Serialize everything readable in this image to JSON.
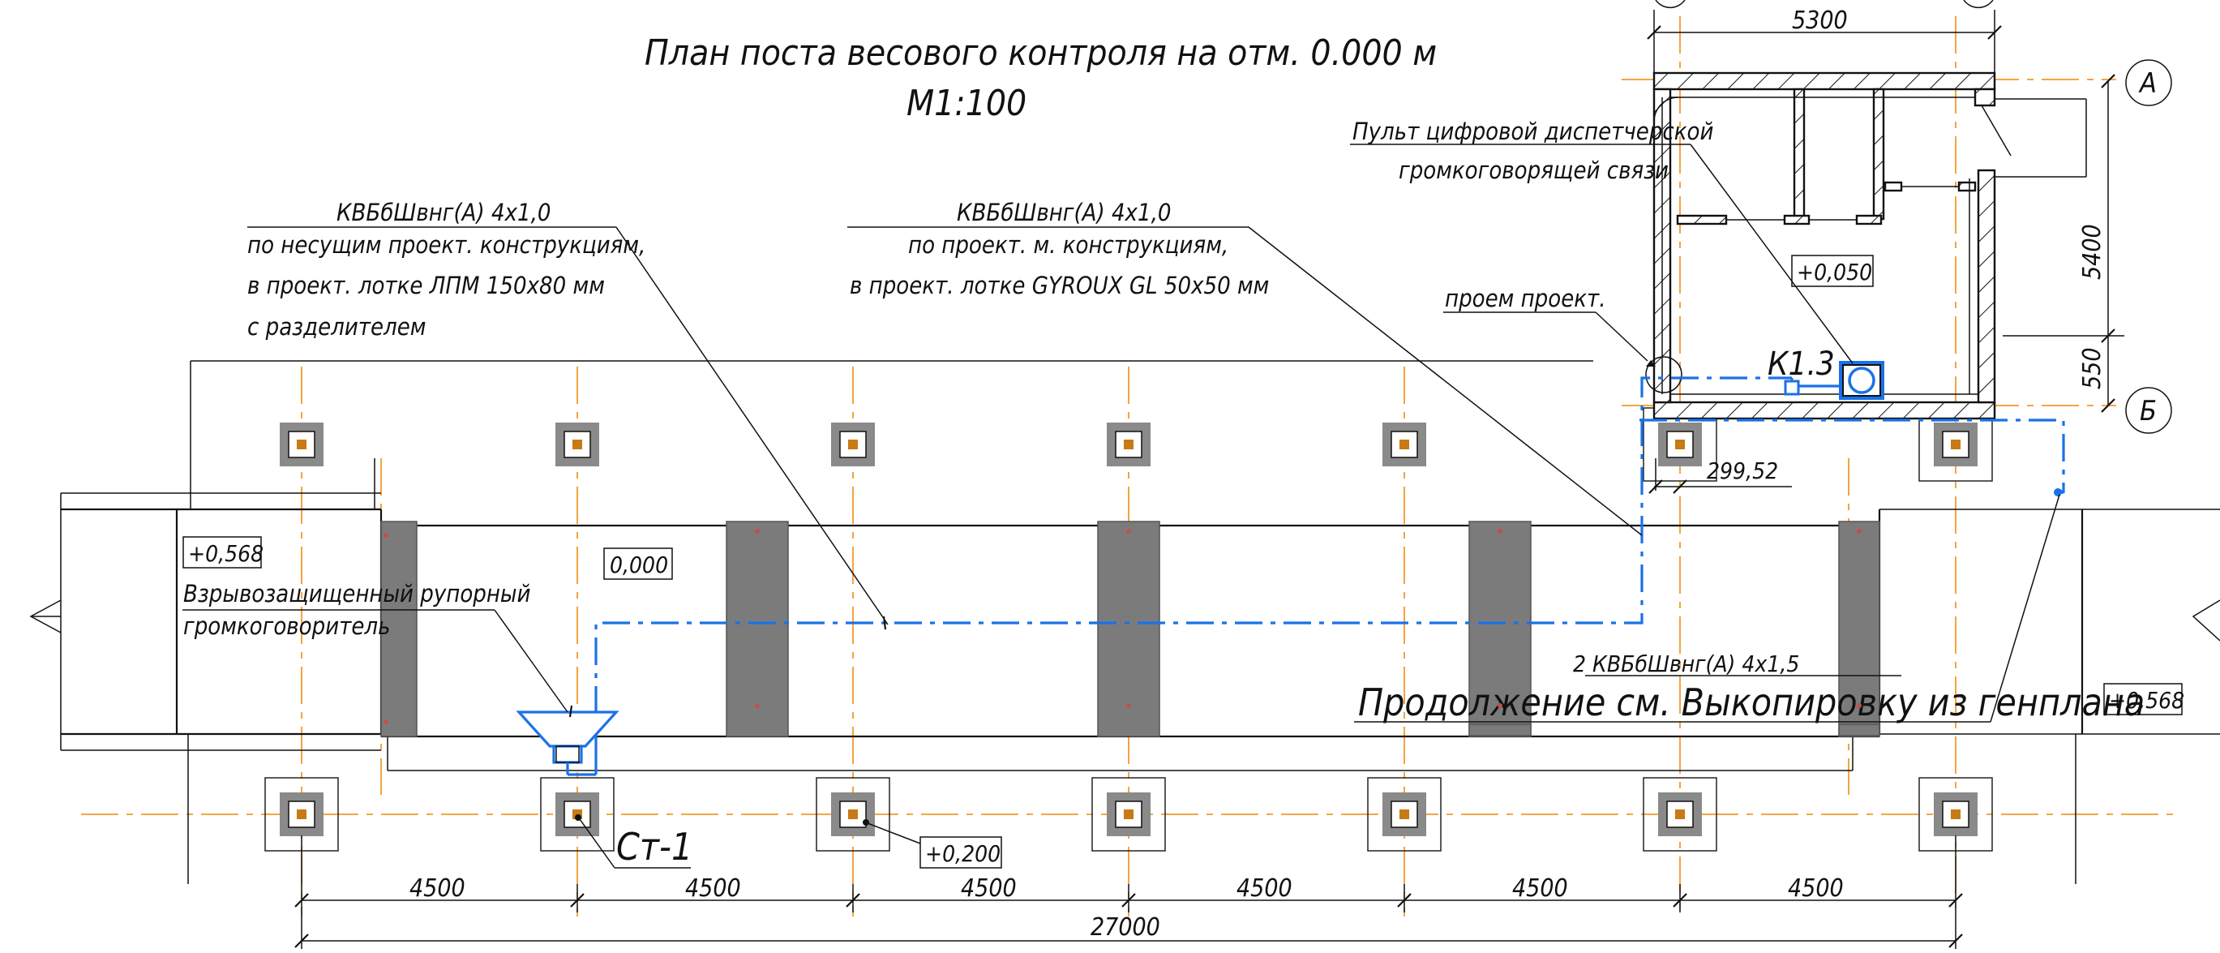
{
  "title": {
    "line1": "План поста весового контроля на отм. 0.000 м",
    "line2": "М1:100"
  },
  "notes": {
    "cable1_name": "КВБбШвнг(А) 4х1,0",
    "cable1_route1": "по несущим проект. конструкциям,",
    "cable1_route2": "в проект. лотке ЛПМ 150х80 мм",
    "cable1_route3": "с разделителем",
    "cable2_name": "КВБбШвнг(А) 4х1,0",
    "cable2_route1": "по проект. м. конструкциям,",
    "cable2_route2": "в проект. лотке GYROUX GL 50х50 мм",
    "console1": "Пульт цифровой диспетчерской",
    "console2": "громкоговорящей связи",
    "opening": "проем проект.",
    "speaker1": "Взрывозащищенный рупорный",
    "speaker2": "громкоговоритель",
    "cable3": "2 КВБбШвнг(А) 4х1,5",
    "continuation": "Продолжение см. Выкопировку из генплана"
  },
  "marks": {
    "k13": "К1.3",
    "st1": "Ст-1",
    "level_0568_left": "+0,568",
    "level_0000": "0,000",
    "level_0050": "+0,050",
    "level_0200": "+0,200",
    "level_0568_right": "+0,568"
  },
  "axes": {
    "a": "А",
    "b": "Б"
  },
  "dimensions": {
    "bays": [
      "4500",
      "4500",
      "4500",
      "4500",
      "4500",
      "4500"
    ],
    "total": "27000",
    "room_width": "5300",
    "room_depth": "5400",
    "offset_550": "550",
    "offset_29952": "299,52"
  },
  "colors": {
    "cable": "#1a72e8",
    "axis": "#f39a2a",
    "platform": "#7b7b7b"
  }
}
